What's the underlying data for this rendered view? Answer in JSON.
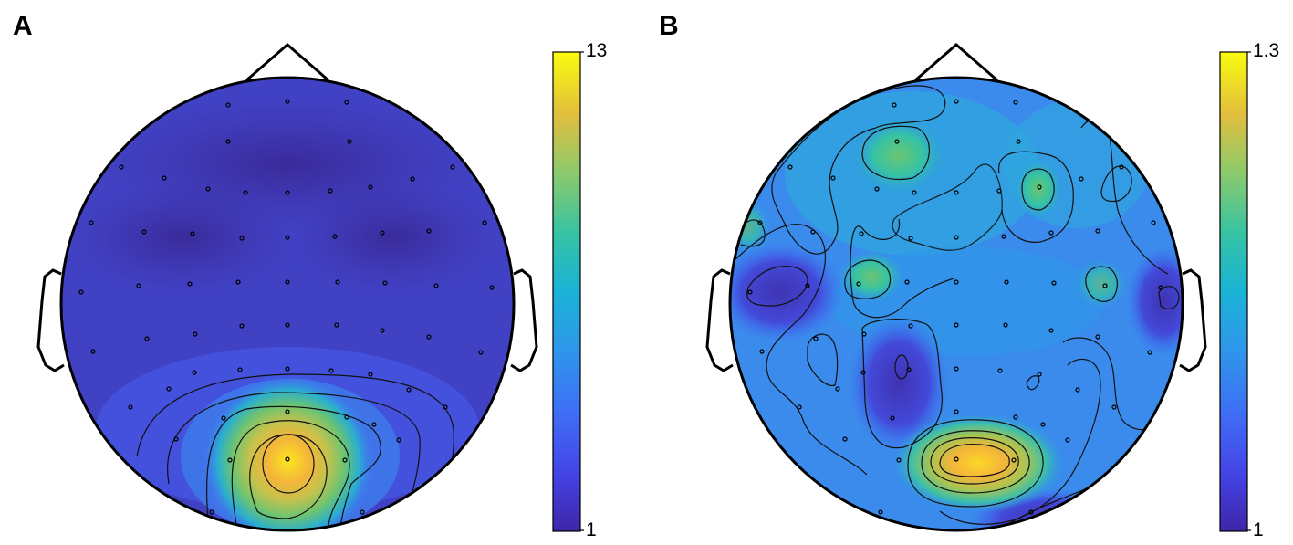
{
  "panels": [
    {
      "label": "A",
      "colorbar": {
        "max": "13",
        "min": "1"
      }
    },
    {
      "label": "B",
      "colorbar": {
        "max": "1.3",
        "min": "1"
      }
    }
  ],
  "colors": {
    "low": "#3f2e9e",
    "mid_low": "#4a7ae8",
    "mid": "#36b5c9",
    "mid_high": "#8cc846",
    "high": "#fbe71e",
    "peak": "#f9b83a",
    "outline": "#000000"
  }
}
